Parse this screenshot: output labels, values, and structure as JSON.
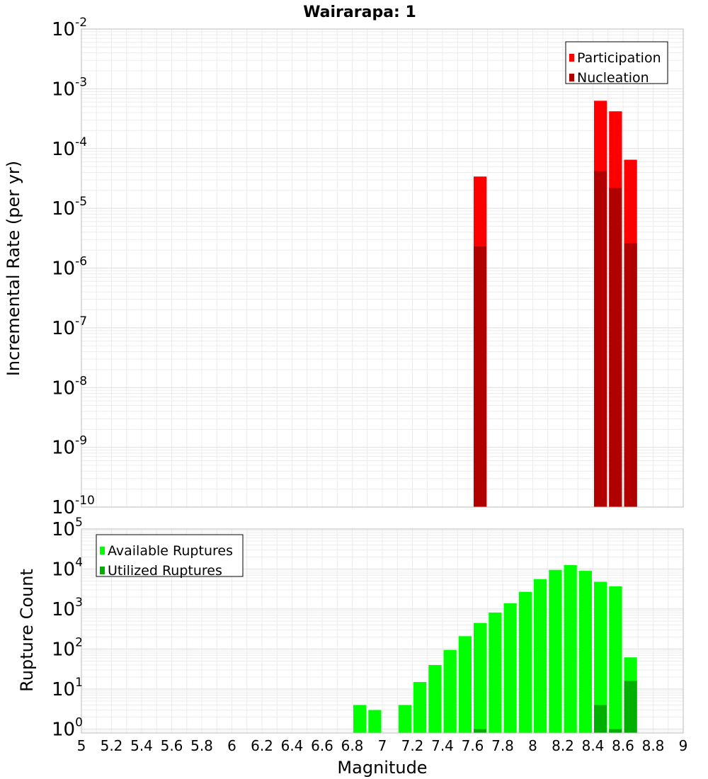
{
  "chart_data": [
    {
      "type": "bar",
      "title": "Wairarapa: 1",
      "ylabel": "Incremental Rate (per yr)",
      "yscale": "log",
      "ylim": [
        1e-10,
        0.01
      ],
      "xlim": [
        5,
        9
      ],
      "bin_width": 0.1,
      "grid": true,
      "legend_position": "top-right",
      "series": [
        {
          "name": "Participation",
          "color": "#ff0000",
          "x": [
            7.65,
            8.45,
            8.55,
            8.65
          ],
          "values": [
            3.4e-05,
            0.00063,
            0.00042,
            6.5e-05
          ]
        },
        {
          "name": "Nucleation",
          "color": "#b00000",
          "x": [
            7.65,
            8.45,
            8.55,
            8.65
          ],
          "values": [
            2.3e-06,
            4.2e-05,
            2.2e-05,
            2.6e-06
          ]
        }
      ]
    },
    {
      "type": "bar",
      "ylabel": "Rupture Count",
      "xlabel": "Magnitude",
      "yscale": "log",
      "ylim": [
        0.8,
        100000.0
      ],
      "xlim": [
        5,
        9
      ],
      "bin_width": 0.1,
      "grid": true,
      "legend_position": "top-left",
      "x_ticks": [
        "5",
        "5.2",
        "5.4",
        "5.6",
        "5.8",
        "6",
        "6.2",
        "6.4",
        "6.6",
        "6.8",
        "7",
        "7.2",
        "7.4",
        "7.6",
        "7.8",
        "8",
        "8.2",
        "8.4",
        "8.6",
        "8.8",
        "9"
      ],
      "series": [
        {
          "name": "Available Ruptures",
          "color": "#00ff00",
          "x": [
            6.85,
            6.95,
            7.15,
            7.25,
            7.35,
            7.45,
            7.55,
            7.65,
            7.75,
            7.85,
            7.95,
            8.05,
            8.15,
            8.25,
            8.35,
            8.45,
            8.55,
            8.65
          ],
          "values": [
            4,
            3,
            4,
            15,
            40,
            95,
            210,
            450,
            820,
            1400,
            2700,
            5600,
            9500,
            12500,
            9000,
            4800,
            3700,
            62
          ]
        },
        {
          "name": "Utilized Ruptures",
          "color": "#00b000",
          "x": [
            7.65,
            8.45,
            8.55,
            8.65
          ],
          "values": [
            1,
            4,
            1,
            16
          ]
        }
      ]
    }
  ]
}
